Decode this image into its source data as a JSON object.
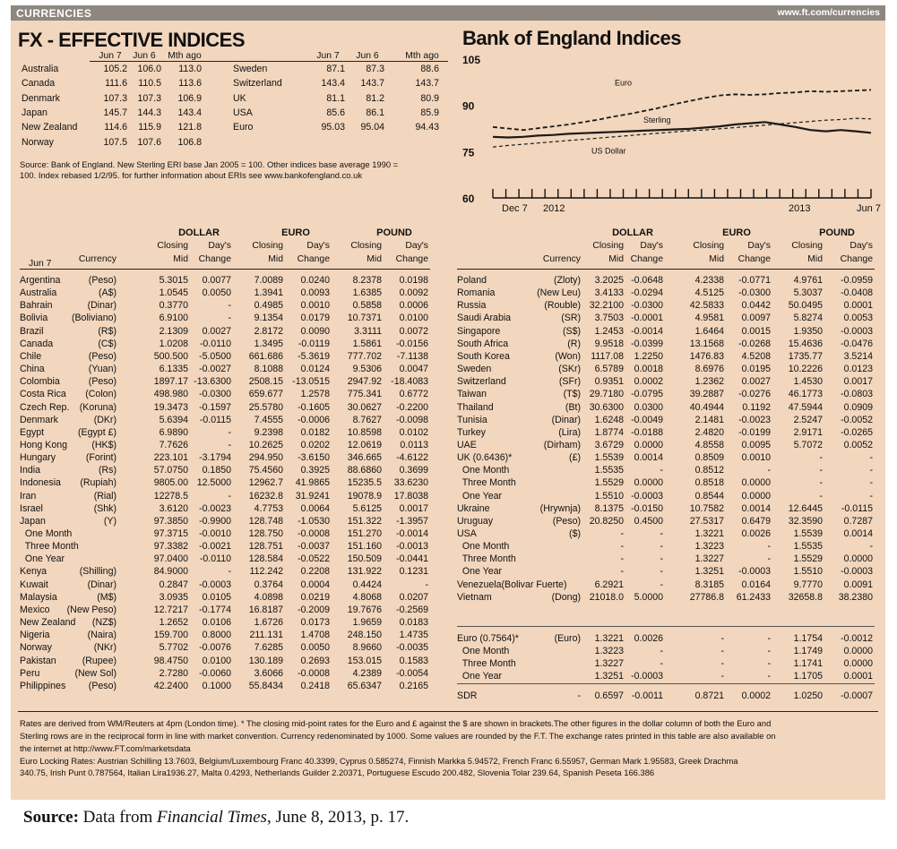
{
  "header": {
    "section": "CURRENCIES",
    "url": "www.ft.com/currencies"
  },
  "fx": {
    "title": "FX - EFFECTIVE INDICES",
    "columns": [
      "Jun 7",
      "Jun 6",
      "Mth ago"
    ],
    "left": [
      [
        "Australia",
        "105.2",
        "106.0",
        "113.0"
      ],
      [
        "Canada",
        "111.6",
        "110.5",
        "113.6"
      ],
      [
        "Denmark",
        "107.3",
        "107.3",
        "106.9"
      ],
      [
        "Japan",
        "145.7",
        "144.3",
        "143.4"
      ],
      [
        "New Zealand",
        "114.6",
        "115.9",
        "121.8"
      ],
      [
        "Norway",
        "107.5",
        "107.6",
        "106.8"
      ]
    ],
    "right": [
      [
        "Sweden",
        "87.1",
        "87.3",
        "88.6"
      ],
      [
        "Switzerland",
        "143.4",
        "143.7",
        "143.7"
      ],
      [
        "UK",
        "81.1",
        "81.2",
        "80.9"
      ],
      [
        "USA",
        "85.6",
        "86.1",
        "85.9"
      ],
      [
        "Euro",
        "95.03",
        "95.04",
        "94.43"
      ]
    ],
    "note1": "Source: Bank of England. New Sterling ERI base Jan 2005 = 100. Other indices base average 1990 =",
    "note2": "100. Index rebased 1/2/95. for further information about ERIs see www.bankofengland.co.uk"
  },
  "chart_data": {
    "type": "line",
    "title": "Bank of England Indices",
    "yticks": [
      "105",
      "90",
      "75",
      "60"
    ],
    "ylim": [
      60,
      105
    ],
    "xlabels": [
      "Dec 7",
      "2012",
      "2013",
      "Jun 7"
    ],
    "series": [
      {
        "name": "Euro",
        "values": [
          83,
          82.5,
          82,
          82.6,
          83.2,
          83.8,
          84.6,
          85.4,
          86.4,
          87.2,
          88.2,
          89.2,
          90.4,
          91.4,
          92.4,
          93.2,
          93.6,
          93.4,
          93.6,
          94.0,
          94.2,
          94.6,
          94.4,
          94.6,
          94.8,
          95.0
        ]
      },
      {
        "name": "Sterling",
        "values": [
          79.8,
          79.6,
          79.8,
          80.2,
          80.4,
          80.8,
          81.0,
          81.2,
          81.4,
          81.6,
          81.8,
          82.0,
          82.2,
          82.4,
          82.8,
          83.2,
          83.8,
          84.2,
          84.6,
          83.8,
          83.0,
          82.0,
          81.6,
          82.0,
          81.6,
          81.1
        ]
      },
      {
        "name": "US Dollar",
        "values": [
          76.5,
          77.0,
          77.4,
          77.8,
          78.2,
          78.6,
          79.0,
          79.4,
          79.8,
          80.2,
          80.6,
          81.0,
          81.4,
          81.8,
          82.0,
          82.4,
          82.8,
          83.2,
          83.6,
          84.0,
          84.4,
          84.8,
          85.2,
          85.4,
          85.8,
          85.6
        ]
      }
    ],
    "colors": {
      "line": "#1a1a1a",
      "bg": "#f2d6bd"
    }
  },
  "table": {
    "groups": [
      "DOLLAR",
      "EURO",
      "POUND"
    ],
    "sub1": [
      "Closing",
      "Day's",
      "Closing",
      "Day's",
      "Closing",
      "Day's"
    ],
    "sub2": [
      "Mid",
      "Change",
      "Mid",
      "Change",
      "Mid",
      "Change"
    ],
    "date": "Jun 7",
    "currency_hdr": "Currency",
    "left": [
      [
        "Argentina",
        "(Peso)",
        "5.3015",
        "0.0077",
        "7.0089",
        "0.0240",
        "8.2378",
        "0.0198"
      ],
      [
        "Australia",
        "(A$)",
        "1.0545",
        "0.0050",
        "1.3941",
        "0.0093",
        "1.6385",
        "0.0092"
      ],
      [
        "Bahrain",
        "(Dinar)",
        "0.3770",
        "-",
        "0.4985",
        "0.0010",
        "0.5858",
        "0.0006"
      ],
      [
        "Bolivia",
        "(Boliviano)",
        "6.9100",
        "-",
        "9.1354",
        "0.0179",
        "10.7371",
        "0.0100"
      ],
      [
        "Brazil",
        "(R$)",
        "2.1309",
        "0.0027",
        "2.8172",
        "0.0090",
        "3.3111",
        "0.0072"
      ],
      [
        "Canada",
        "(C$)",
        "1.0208",
        "-0.0110",
        "1.3495",
        "-0.0119",
        "1.5861",
        "-0.0156"
      ],
      [
        "Chile",
        "(Peso)",
        "500.500",
        "-5.0500",
        "661.686",
        "-5.3619",
        "777.702",
        "-7.1138"
      ],
      [
        "China",
        "(Yuan)",
        "6.1335",
        "-0.0027",
        "8.1088",
        "0.0124",
        "9.5306",
        "0.0047"
      ],
      [
        "Colombia",
        "(Peso)",
        "1897.17",
        "-13.6300",
        "2508.15",
        "-13.0515",
        "2947.92",
        "-18.4083"
      ],
      [
        "Costa Rica",
        "(Colon)",
        "498.980",
        "-0.0300",
        "659.677",
        "1.2578",
        "775.341",
        "0.6772"
      ],
      [
        "Czech Rep.",
        "(Koruna)",
        "19.3473",
        "-0.1597",
        "25.5780",
        "-0.1605",
        "30.0627",
        "-0.2200"
      ],
      [
        "Denmark",
        "(DKr)",
        "5.6394",
        "-0.0115",
        "7.4555",
        "-0.0006",
        "8.7627",
        "-0.0098"
      ],
      [
        "Egypt",
        "(Egypt £)",
        "6.9890",
        "-",
        "9.2398",
        "0.0182",
        "10.8598",
        "0.0102"
      ],
      [
        "Hong Kong",
        "(HK$)",
        "7.7626",
        "-",
        "10.2625",
        "0.0202",
        "12.0619",
        "0.0113"
      ],
      [
        "Hungary",
        "(Forint)",
        "223.101",
        "-3.1794",
        "294.950",
        "-3.6150",
        "346.665",
        "-4.6122"
      ],
      [
        "India",
        "(Rs)",
        "57.0750",
        "0.1850",
        "75.4560",
        "0.3925",
        "88.6860",
        "0.3699"
      ],
      [
        "Indonesia",
        "(Rupiah)",
        "9805.00",
        "12.5000",
        "12962.7",
        "41.9865",
        "15235.5",
        "33.6230"
      ],
      [
        "Iran",
        "(Rial)",
        "12278.5",
        "-",
        "16232.8",
        "31.9241",
        "19078.9",
        "17.8038"
      ],
      [
        "Israel",
        "(Shk)",
        "3.6120",
        "-0.0023",
        "4.7753",
        "0.0064",
        "5.6125",
        "0.0017"
      ],
      [
        "Japan",
        "(Y)",
        "97.3850",
        "-0.9900",
        "128.748",
        "-1.0530",
        "151.322",
        "-1.3957"
      ],
      [
        "  One Month",
        "",
        "97.3715",
        "-0.0010",
        "128.750",
        "-0.0008",
        "151.270",
        "-0.0014"
      ],
      [
        "  Three Month",
        "",
        "97.3382",
        "-0.0021",
        "128.751",
        "-0.0037",
        "151.160",
        "-0.0013"
      ],
      [
        "  One Year",
        "",
        "97.0400",
        "-0.0110",
        "128.584",
        "-0.0522",
        "150.509",
        "-0.0441"
      ],
      [
        "Kenya",
        "(Shilling)",
        "84.9000",
        "-",
        "112.242",
        "0.2208",
        "131.922",
        "0.1231"
      ],
      [
        "Kuwait",
        "(Dinar)",
        "0.2847",
        "-0.0003",
        "0.3764",
        "0.0004",
        "0.4424",
        "-"
      ],
      [
        "Malaysia",
        "(M$)",
        "3.0935",
        "0.0105",
        "4.0898",
        "0.0219",
        "4.8068",
        "0.0207"
      ],
      [
        "Mexico",
        "(New Peso)",
        "12.7217",
        "-0.1774",
        "16.8187",
        "-0.2009",
        "19.7676",
        "-0.2569"
      ],
      [
        "New Zealand",
        "(NZ$)",
        "1.2652",
        "0.0106",
        "1.6726",
        "0.0173",
        "1.9659",
        "0.0183"
      ],
      [
        "Nigeria",
        "(Naira)",
        "159.700",
        "0.8000",
        "211.131",
        "1.4708",
        "248.150",
        "1.4735"
      ],
      [
        "Norway",
        "(NKr)",
        "5.7702",
        "-0.0076",
        "7.6285",
        "0.0050",
        "8.9660",
        "-0.0035"
      ],
      [
        "Pakistan",
        "(Rupee)",
        "98.4750",
        "0.0100",
        "130.189",
        "0.2693",
        "153.015",
        "0.1583"
      ],
      [
        "Peru",
        "(New Sol)",
        "2.7280",
        "-0.0060",
        "3.6066",
        "-0.0008",
        "4.2389",
        "-0.0054"
      ],
      [
        "Philippines",
        "(Peso)",
        "42.2400",
        "0.1000",
        "55.8434",
        "0.2418",
        "65.6347",
        "0.2165"
      ]
    ],
    "right": [
      [
        "Poland",
        "(Zloty)",
        "3.2025",
        "-0.0648",
        "4.2338",
        "-0.0771",
        "4.9761",
        "-0.0959"
      ],
      [
        "Romania",
        "(New Leu)",
        "3.4133",
        "-0.0294",
        "4.5125",
        "-0.0300",
        "5.3037",
        "-0.0408"
      ],
      [
        "Russia",
        "(Rouble)",
        "32.2100",
        "-0.0300",
        "42.5833",
        "0.0442",
        "50.0495",
        "0.0001"
      ],
      [
        "Saudi Arabia",
        "(SR)",
        "3.7503",
        "-0.0001",
        "4.9581",
        "0.0097",
        "5.8274",
        "0.0053"
      ],
      [
        "Singapore",
        "(S$)",
        "1.2453",
        "-0.0014",
        "1.6464",
        "0.0015",
        "1.9350",
        "-0.0003"
      ],
      [
        "South Africa",
        "(R)",
        "9.9518",
        "-0.0399",
        "13.1568",
        "-0.0268",
        "15.4636",
        "-0.0476"
      ],
      [
        "South Korea",
        "(Won)",
        "1117.08",
        "1.2250",
        "1476.83",
        "4.5208",
        "1735.77",
        "3.5214"
      ],
      [
        "Sweden",
        "(SKr)",
        "6.5789",
        "0.0018",
        "8.6976",
        "0.0195",
        "10.2226",
        "0.0123"
      ],
      [
        "Switzerland",
        "(SFr)",
        "0.9351",
        "0.0002",
        "1.2362",
        "0.0027",
        "1.4530",
        "0.0017"
      ],
      [
        "Taiwan",
        "(T$)",
        "29.7180",
        "-0.0795",
        "39.2887",
        "-0.0276",
        "46.1773",
        "-0.0803"
      ],
      [
        "Thailand",
        "(Bt)",
        "30.6300",
        "0.0300",
        "40.4944",
        "0.1192",
        "47.5944",
        "0.0909"
      ],
      [
        "Tunisia",
        "(Dinar)",
        "1.6248",
        "-0.0049",
        "2.1481",
        "-0.0023",
        "2.5247",
        "-0.0052"
      ],
      [
        "Turkey",
        "(Lira)",
        "1.8774",
        "-0.0188",
        "2.4820",
        "-0.0199",
        "2.9171",
        "-0.0265"
      ],
      [
        "UAE",
        "(Dirham)",
        "3.6729",
        "0.0000",
        "4.8558",
        "0.0095",
        "5.7072",
        "0.0052"
      ],
      [
        "UK (0.6436)*",
        "(£)",
        "1.5539",
        "0.0014",
        "0.8509",
        "0.0010",
        "-",
        "-"
      ],
      [
        "  One Month",
        "",
        "1.5535",
        "-",
        "0.8512",
        "-",
        "-",
        "-"
      ],
      [
        "  Three Month",
        "",
        "1.5529",
        "0.0000",
        "0.8518",
        "0.0000",
        "-",
        "-"
      ],
      [
        "  One Year",
        "",
        "1.5510",
        "-0.0003",
        "0.8544",
        "0.0000",
        "-",
        "-"
      ],
      [
        "Ukraine",
        "(Hrywnja)",
        "8.1375",
        "-0.0150",
        "10.7582",
        "0.0014",
        "12.6445",
        "-0.0115"
      ],
      [
        "Uruguay",
        "(Peso)",
        "20.8250",
        "0.4500",
        "27.5317",
        "0.6479",
        "32.3590",
        "0.7287"
      ],
      [
        "USA",
        "($)",
        "-",
        "-",
        "1.3221",
        "0.0026",
        "1.5539",
        "0.0014"
      ],
      [
        "  One Month",
        "",
        "-",
        "-",
        "1.3223",
        "-",
        "1.5535",
        "-"
      ],
      [
        "  Three Month",
        "",
        "-",
        "-",
        "1.3227",
        "-",
        "1.5529",
        "0.0000"
      ],
      [
        "  One Year",
        "",
        "-",
        "-",
        "1.3251",
        "-0.0003",
        "1.5510",
        "-0.0003"
      ],
      [
        "Venezuela(Bolivar Fuerte)",
        "",
        "6.2921",
        "-",
        "8.3185",
        "0.0164",
        "9.7770",
        "0.0091"
      ],
      [
        "Vietnam",
        "(Dong)",
        "21018.0",
        "5.0000",
        "27786.8",
        "61.2433",
        "32658.8",
        "38.2380"
      ]
    ],
    "euro": [
      [
        "Euro (0.7564)*",
        "(Euro)",
        "1.3221",
        "0.0026",
        "-",
        "-",
        "1.1754",
        "-0.0012"
      ],
      [
        "  One Month",
        "",
        "1.3223",
        "-",
        "-",
        "-",
        "1.1749",
        "0.0000"
      ],
      [
        "  Three Month",
        "",
        "1.3227",
        "-",
        "-",
        "-",
        "1.1741",
        "0.0000"
      ],
      [
        "  One Year",
        "",
        "1.3251",
        "-0.0003",
        "-",
        "-",
        "1.1705",
        "0.0001"
      ]
    ],
    "sdr": [
      "SDR",
      "-",
      "0.6597",
      "-0.0011",
      "0.8721",
      "0.0002",
      "1.0250",
      "-0.0007"
    ]
  },
  "footnotes": [
    "Rates are derived from WM/Reuters at 4pm (London time). * The closing mid-point rates for the Euro and £ against the $ are shown in brackets.The other figures in the dollar column of both the Euro and",
    "Sterling rows are in the reciprocal form in line with market convention. Currency redenominated by 1000. Some values are rounded by the F.T. The exchange rates printed in this table are also available on",
    "the internet at http://www.FT.com/marketsdata",
    "Euro Locking Rates: Austrian Schilling 13.7603, Belgium/Luxembourg Franc 40.3399, Cyprus 0.585274, Finnish Markka 5.94572, French Franc 6.55957, German Mark 1.95583, Greek Drachma",
    "340.75, Irish Punt 0.787564, Italian Lira1936.27, Malta 0.4293, Netherlands Guilder 2.20371, Portuguese Escudo 200.482, Slovenia Tolar 239.64, Spanish Peseta 166.386"
  ],
  "source": {
    "label": "Source:",
    "text1": " Data from ",
    "pub": "Financial Times",
    "text2": ", June 8, 2013, p. 17."
  }
}
